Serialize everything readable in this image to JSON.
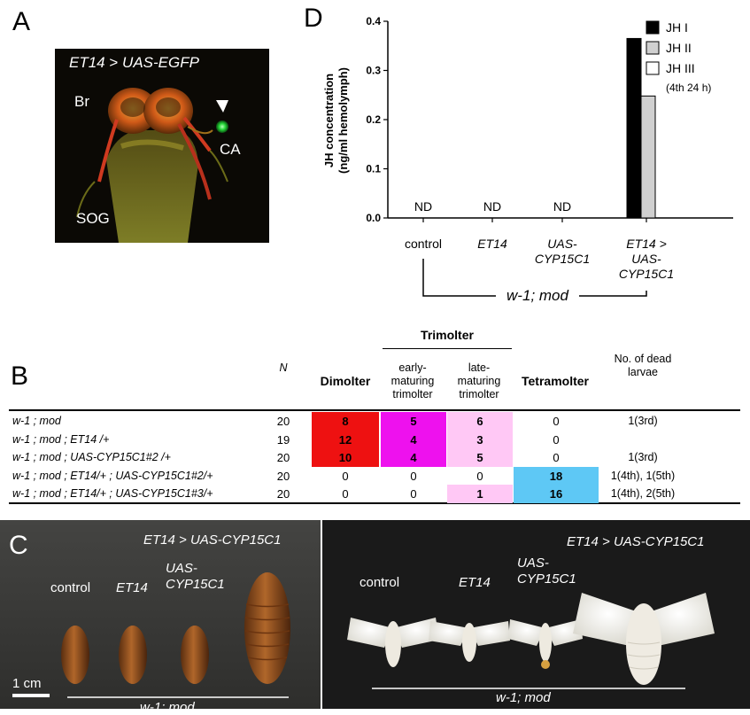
{
  "panels": {
    "a_label": "A",
    "b_label": "B",
    "c_label": "C",
    "d_label": "D"
  },
  "panel_a": {
    "title_left": "ET14",
    "title_op": ">",
    "title_right": "UAS-EGFP",
    "br": "Br",
    "ca": "CA",
    "sog": "SOG"
  },
  "chart_data": {
    "type": "bar",
    "ylabel_line1": "JH concentration",
    "ylabel_line2": "(ng/ml hemolymph)",
    "ylim": [
      0,
      0.4
    ],
    "yticks": [
      "0.0",
      "0.1",
      "0.2",
      "0.3",
      "0.4"
    ],
    "categories": [
      "control",
      "ET14",
      "UAS-CYP15C1",
      "ET14 > UAS-CYP15C1"
    ],
    "cat_lines": [
      [
        "control"
      ],
      [
        "ET14"
      ],
      [
        "UAS-",
        "CYP15C1"
      ],
      [
        "ET14 >",
        "UAS-",
        "CYP15C1"
      ]
    ],
    "series": [
      {
        "name": "JH I",
        "color": "#000000",
        "values": [
          0,
          0,
          0,
          0.365
        ]
      },
      {
        "name": "JH II",
        "color": "#d0d0d0",
        "values": [
          0,
          0,
          0,
          0.248
        ]
      },
      {
        "name": "JH III",
        "color": "#ffffff",
        "values": [
          0,
          0,
          0,
          0
        ]
      }
    ],
    "annotations": [
      "ND",
      "ND",
      "ND"
    ],
    "legend_note": "(4th 24 h)",
    "bracket_label_a": "w-1",
    "bracket_label_b": "; mod"
  },
  "table": {
    "col_n": "N",
    "col_dimolter": "Dimolter",
    "col_trimolter": "Trimolter",
    "col_early": [
      "early-",
      "maturing",
      "trimolter"
    ],
    "col_late": [
      "late-",
      "maturing",
      "trimolter"
    ],
    "col_tetramolter": "Tetramolter",
    "col_dead": [
      "No. of dead",
      "larvae"
    ],
    "rows": [
      {
        "genotype": "w-1 ; mod",
        "n": "20",
        "dimolter": "8",
        "early": "5",
        "late": "6",
        "tetra": "0",
        "dead": "1(3rd)"
      },
      {
        "genotype": "w-1 ; mod ; ET14 /+",
        "n": "19",
        "dimolter": "12",
        "early": "4",
        "late": "3",
        "tetra": "0",
        "dead": ""
      },
      {
        "genotype": "w-1 ; mod ; UAS-CYP15C1#2 /+",
        "n": "20",
        "dimolter": "10",
        "early": "4",
        "late": "5",
        "tetra": "0",
        "dead": "1(3rd)"
      },
      {
        "genotype": "w-1 ; mod ; ET14/+ ; UAS-CYP15C1#2/+",
        "n": "20",
        "dimolter": "0",
        "early": "0",
        "late": "0",
        "tetra": "18",
        "dead": "1(4th), 1(5th)"
      },
      {
        "genotype": "w-1 ; mod ; ET14/+ ; UAS-CYP15C1#3/+",
        "n": "20",
        "dimolter": "0",
        "early": "0",
        "late": "1",
        "tetra": "16",
        "dead": "1(4th), 2(5th)"
      }
    ],
    "colors": {
      "dimolter": "#ee1111",
      "early": "#ee11ee",
      "late": "#ffc8f5",
      "tetra": "#5ec8f5"
    }
  },
  "panel_c": {
    "left_title": "ET14 > UAS-CYP15C1",
    "left_control": "control",
    "left_et14": "ET14",
    "left_uas": [
      "UAS-",
      "CYP15C1"
    ],
    "left_genotype": "w-1; mod",
    "scale": "1 cm",
    "right_title": "ET14 > UAS-CYP15C1",
    "right_control": "control",
    "right_et14": "ET14",
    "right_uas": [
      "UAS-",
      "CYP15C1"
    ],
    "right_genotype": "w-1; mod"
  }
}
